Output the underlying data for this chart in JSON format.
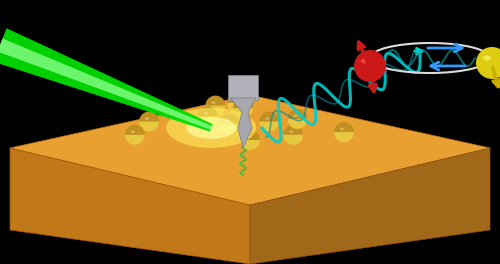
{
  "bg_color": "#000000",
  "fig_width": 5.0,
  "fig_height": 2.64,
  "dpi": 100,
  "slab_top_color": "#E8A030",
  "slab_left_color": "#C07818",
  "slab_right_color": "#A06818",
  "laser_color": "#00EE00",
  "wave_color": "#00CCCC",
  "tip_color": "#B8B8B8",
  "cant_color": "#C8C8C8",
  "sphere_yellow": "#E8C840",
  "sphere_red": "#CC2020",
  "spin_blue": "#3399FF",
  "orbit_color": "#DDDDDD"
}
